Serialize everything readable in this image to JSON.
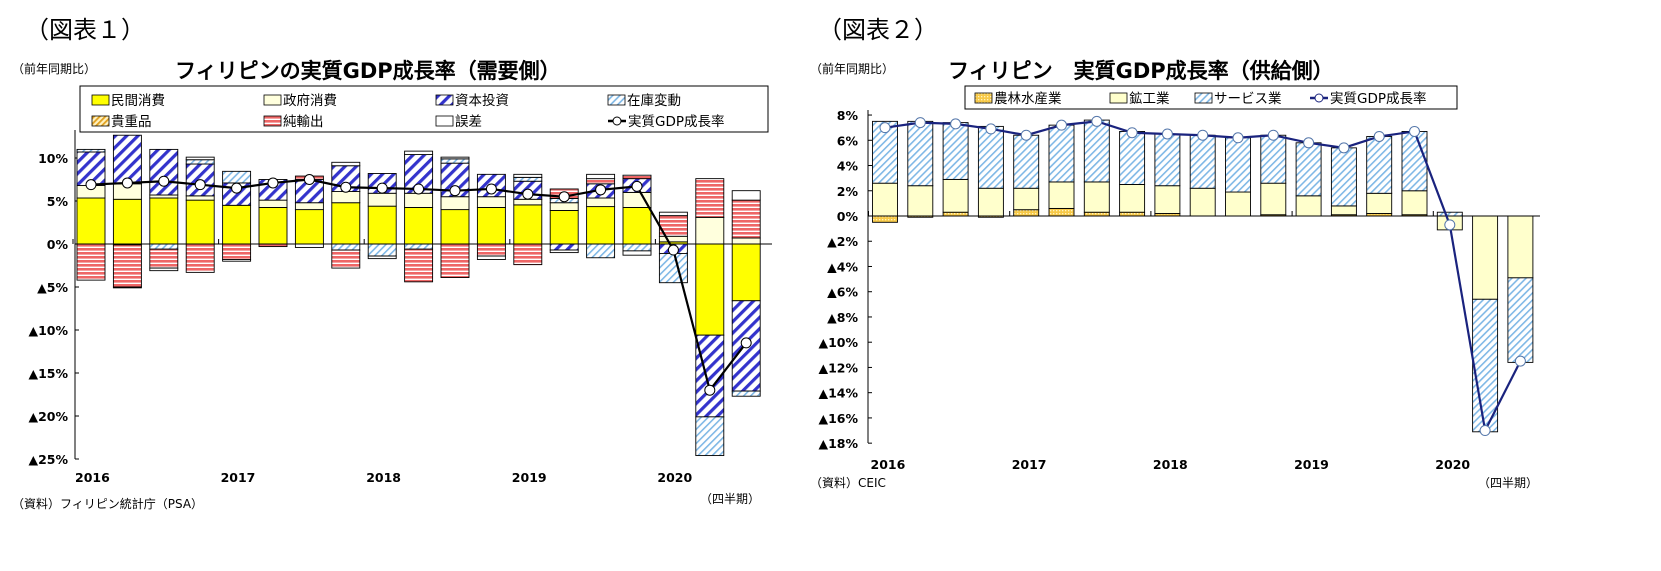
{
  "chart_data": [
    {
      "type": "bar",
      "stacked": true,
      "figure_label": "（図表１）",
      "title": "フィリピンの実質GDP成長率（需要側）",
      "ylabel": "（前年同期比）",
      "xlabel": "（四半期）",
      "source": "（資料）フィリピン統計庁（PSA）",
      "ylim": [
        -25,
        12.5
      ],
      "yticks": [
        10,
        5,
        0,
        -5,
        -10,
        -15,
        -20,
        -25
      ],
      "ytick_labels": [
        "10%",
        "5%",
        "0%",
        "▲5%",
        "▲10%",
        "▲15%",
        "▲20%",
        "▲25%"
      ],
      "year_labels": [
        "2016",
        "2017",
        "2018",
        "2019",
        "2020"
      ],
      "categories": [
        "2016Q1",
        "2016Q2",
        "2016Q3",
        "2016Q4",
        "2017Q1",
        "2017Q2",
        "2017Q3",
        "2017Q4",
        "2018Q1",
        "2018Q2",
        "2018Q3",
        "2018Q4",
        "2019Q1",
        "2019Q2",
        "2019Q3",
        "2019Q4",
        "2020Q1",
        "2020Q2",
        "2020Q3"
      ],
      "legend_position": "top",
      "series": [
        {
          "name": "民間消費",
          "color": "#ffff00",
          "pattern": "solid",
          "values": [
            5.35,
            5.2,
            5.35,
            5.1,
            4.5,
            4.25,
            4.0,
            4.8,
            4.4,
            4.25,
            4.0,
            4.25,
            4.55,
            3.9,
            4.35,
            4.25,
            0.25,
            -10.6,
            -6.6
          ]
        },
        {
          "name": "政府消費",
          "color": "#ffffdd",
          "pattern": "solid",
          "values": [
            1.45,
            1.8,
            0.35,
            0.5,
            0,
            0.85,
            0.8,
            1.3,
            1.5,
            1.65,
            1.5,
            1.25,
            0.65,
            0.9,
            1.0,
            1.75,
            0.65,
            3.1,
            0.7
          ]
        },
        {
          "name": "資本投資",
          "color": "#3333cc",
          "pattern": "hatch-bold",
          "values": [
            3.9,
            5.65,
            5.3,
            3.7,
            2.6,
            2.4,
            2.7,
            3.0,
            2.3,
            4.5,
            3.9,
            2.6,
            2.1,
            -0.7,
            1.65,
            1.6,
            -1.1,
            -9.5,
            -10.5
          ]
        },
        {
          "name": "在庫変動",
          "color": "#99ccee",
          "pattern": "hatch-light",
          "values": [
            0.3,
            -0.1,
            -0.6,
            0.5,
            1.35,
            0,
            0,
            -0.7,
            -1.4,
            -0.6,
            0.5,
            0,
            0.45,
            0.5,
            -1.6,
            -0.8,
            -3.4,
            -4.5,
            -0.6
          ]
        },
        {
          "name": "貴重品",
          "color": "#f0b040",
          "pattern": "hatch-orange",
          "values": [
            0,
            0,
            0,
            0,
            0,
            0,
            0,
            0,
            0,
            0,
            0,
            0,
            0,
            0,
            0,
            0,
            0,
            0,
            0
          ]
        },
        {
          "name": "純輸出",
          "color": "#ee6666",
          "pattern": "hstripe",
          "values": [
            -4.2,
            -4.9,
            -2.2,
            -3.3,
            -1.8,
            -0.3,
            0.4,
            -2.1,
            0,
            -3.8,
            -3.9,
            -1.4,
            -2.4,
            1.1,
            0.6,
            0.4,
            2.4,
            4.5,
            4.4
          ]
        },
        {
          "name": "誤差",
          "color": "#ffffff",
          "pattern": "solid",
          "values": [
            0,
            -0.1,
            -0.3,
            0.3,
            -0.2,
            0,
            -0.4,
            0.4,
            -0.3,
            0.4,
            0.2,
            -0.4,
            0.35,
            -0.3,
            0.5,
            -0.5,
            0.4,
            0,
            1.1
          ]
        }
      ],
      "line": {
        "name": "実質GDP成長率",
        "color": "#000000",
        "values": [
          6.9,
          7.1,
          7.3,
          6.9,
          6.5,
          7.1,
          7.5,
          6.6,
          6.5,
          6.4,
          6.2,
          6.4,
          5.8,
          5.5,
          6.3,
          6.7,
          -0.7,
          -17.0,
          -11.5
        ]
      }
    },
    {
      "type": "bar",
      "stacked": true,
      "figure_label": "（図表２）",
      "title": "フィリピン　実質GDP成長率（供給側）",
      "ylabel": "（前年同期比）",
      "xlabel": "（四半期）",
      "source": "（資料）CEIC",
      "ylim": [
        -18,
        8
      ],
      "yticks": [
        8,
        6,
        4,
        2,
        0,
        -2,
        -4,
        -6,
        -8,
        -10,
        -12,
        -14,
        -16,
        -18
      ],
      "ytick_labels": [
        "8%",
        "6%",
        "4%",
        "2%",
        "0%",
        "▲2%",
        "▲4%",
        "▲6%",
        "▲8%",
        "▲10%",
        "▲12%",
        "▲14%",
        "▲16%",
        "▲18%"
      ],
      "year_labels": [
        "2016",
        "2017",
        "2018",
        "2019",
        "2020"
      ],
      "categories": [
        "2016Q1",
        "2016Q2",
        "2016Q3",
        "2016Q4",
        "2017Q1",
        "2017Q2",
        "2017Q3",
        "2017Q4",
        "2018Q1",
        "2018Q2",
        "2018Q3",
        "2018Q4",
        "2019Q1",
        "2019Q2",
        "2019Q3",
        "2019Q4",
        "2020Q1",
        "2020Q2",
        "2020Q3"
      ],
      "legend_position": "top",
      "series": [
        {
          "name": "農林水産業",
          "color": "#f5c040",
          "pattern": "dots-orange",
          "values": [
            -0.5,
            -0.1,
            0.3,
            -0.1,
            0.5,
            0.6,
            0.3,
            0.3,
            0.2,
            0,
            0,
            0.1,
            0,
            0.1,
            0.2,
            0.1,
            0,
            0,
            0
          ]
        },
        {
          "name": "鉱工業",
          "color": "#ffffcc",
          "pattern": "solid",
          "values": [
            2.6,
            2.4,
            2.6,
            2.2,
            1.7,
            2.1,
            2.4,
            2.2,
            2.2,
            2.2,
            1.9,
            2.5,
            1.6,
            0.7,
            1.6,
            1.9,
            -1.1,
            -6.6,
            -4.9
          ]
        },
        {
          "name": "サービス業",
          "color": "#99ccee",
          "pattern": "hatch-light",
          "values": [
            4.9,
            5.1,
            4.5,
            4.9,
            4.2,
            4.5,
            4.9,
            4.2,
            4.1,
            4.2,
            4.3,
            3.8,
            4.2,
            4.6,
            4.5,
            4.7,
            0.3,
            -10.5,
            -6.7
          ]
        }
      ],
      "line": {
        "name": "実質GDP成長率",
        "color": "#1a237e",
        "values": [
          7.0,
          7.4,
          7.3,
          6.9,
          6.4,
          7.2,
          7.5,
          6.6,
          6.5,
          6.4,
          6.2,
          6.4,
          5.8,
          5.4,
          6.3,
          6.7,
          -0.7,
          -17.0,
          -11.5
        ]
      }
    }
  ]
}
